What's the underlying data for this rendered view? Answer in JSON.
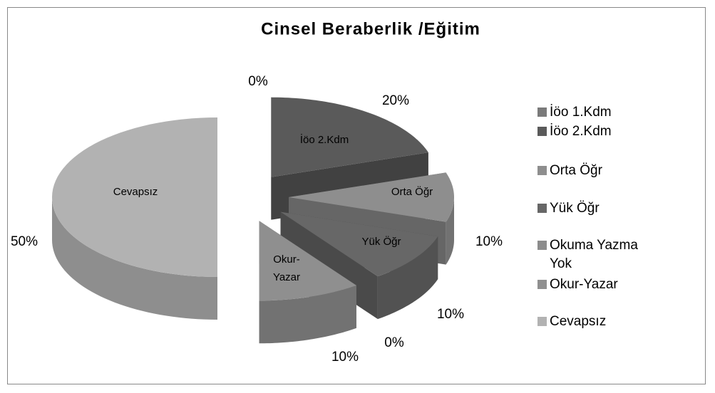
{
  "chart_data": {
    "type": "pie3d",
    "title": "Cinsel Beraberlik /Eğitim",
    "categories": [
      "İöo 1.Kdm",
      "İöo 2.Kdm",
      "Orta Öğr",
      "Yük Öğr",
      "Okuma Yazma Yok",
      "Okur-Yazar",
      "Cevapsız"
    ],
    "values": [
      0,
      20,
      10,
      10,
      0,
      10,
      50
    ],
    "value_labels": [
      "0%",
      "20%",
      "10%",
      "10%",
      "0%",
      "10%",
      "50%"
    ],
    "colors": [
      "#7a7a7a",
      "#5a5a5a",
      "#8e8e8e",
      "#676767",
      "#8c8c8c",
      "#8f8f8f",
      "#b2b2b2"
    ],
    "legend": "right"
  }
}
